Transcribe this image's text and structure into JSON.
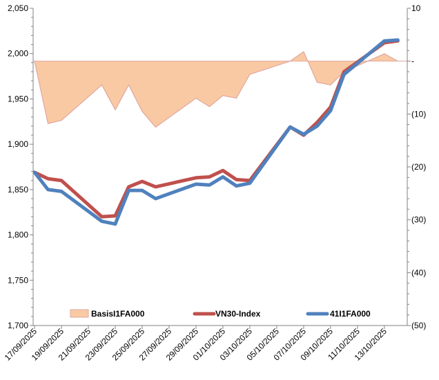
{
  "chart_data": {
    "type": "line",
    "categories": [
      "17/09/2025",
      "18/09/2025",
      "19/09/2025",
      "22/09/2025",
      "23/09/2025",
      "24/09/2025",
      "25/09/2025",
      "26/09/2025",
      "29/09/2025",
      "30/09/2025",
      "01/10/2025",
      "02/10/2025",
      "03/10/2025",
      "06/10/2025",
      "07/10/2025",
      "08/10/2025",
      "09/10/2025",
      "10/10/2025",
      "13/10/2025",
      "14/10/2025"
    ],
    "dates": [
      "2025-09-17",
      "2025-09-18",
      "2025-09-19",
      "2025-09-22",
      "2025-09-23",
      "2025-09-24",
      "2025-09-25",
      "2025-09-26",
      "2025-09-29",
      "2025-09-30",
      "2025-10-01",
      "2025-10-02",
      "2025-10-03",
      "2025-10-06",
      "2025-10-07",
      "2025-10-08",
      "2025-10-09",
      "2025-10-10",
      "2025-10-13",
      "2025-10-14"
    ],
    "x_tick_labels": [
      "17/09/2025",
      "19/09/2025",
      "21/09/2025",
      "23/09/2025",
      "25/09/2025",
      "27/09/2025",
      "29/09/2025",
      "01/10/2025",
      "03/10/2025",
      "05/10/2025",
      "07/10/2025",
      "09/10/2025",
      "11/10/2025",
      "13/10/2025"
    ],
    "y_left": {
      "min": 1700,
      "max": 2050,
      "ticks": [
        "1,700",
        "1,750",
        "1,800",
        "1,850",
        "1,900",
        "1,950",
        "2,000",
        "2,050"
      ],
      "tick_values": [
        1700,
        1750,
        1800,
        1850,
        1900,
        1950,
        2000,
        2050
      ]
    },
    "y_right": {
      "min": -50,
      "max": 10,
      "ticks": [
        "(50)",
        "(40)",
        "(30)",
        "(20)",
        "(10)",
        "-",
        "10"
      ],
      "tick_values": [
        -50,
        -40,
        -30,
        -20,
        -10,
        0,
        10
      ]
    },
    "series": [
      {
        "name": "BasisI1FA000",
        "kind": "area",
        "axis": "right",
        "color": "#f9c9a3",
        "edge_color": "#e0a7a0",
        "values": [
          0,
          -11.8,
          -11.2,
          -4.5,
          -9.2,
          -4.5,
          -9.5,
          -12.5,
          -7,
          -8.6,
          -6.5,
          -7,
          -2.5,
          0,
          1.8,
          -4,
          -4.5,
          -2,
          1.4,
          0
        ]
      },
      {
        "name": "VN30-Index",
        "kind": "line",
        "axis": "left",
        "color": "#c0504d",
        "values": [
          1869,
          1862,
          1860,
          1820,
          1821,
          1853,
          1859,
          1853,
          1863,
          1864,
          1871,
          1861,
          1860,
          1919,
          1910,
          1924,
          1941,
          1980,
          2012,
          2014
        ]
      },
      {
        "name": "41I1FA000",
        "kind": "line",
        "axis": "left",
        "color": "#4f81bd",
        "values": [
          1869,
          1850,
          1848,
          1815,
          1812,
          1849,
          1849,
          1840,
          1856,
          1855,
          1864,
          1854,
          1857,
          1919,
          1911,
          1920,
          1937,
          1977,
          2014,
          2015
        ]
      }
    ],
    "legend": {
      "placement": "bottom-inside",
      "entries": [
        "BasisI1FA000",
        "VN30-Index",
        "41I1FA000"
      ]
    },
    "title": "",
    "xlabel": "",
    "ylabel": "",
    "grid": false
  }
}
